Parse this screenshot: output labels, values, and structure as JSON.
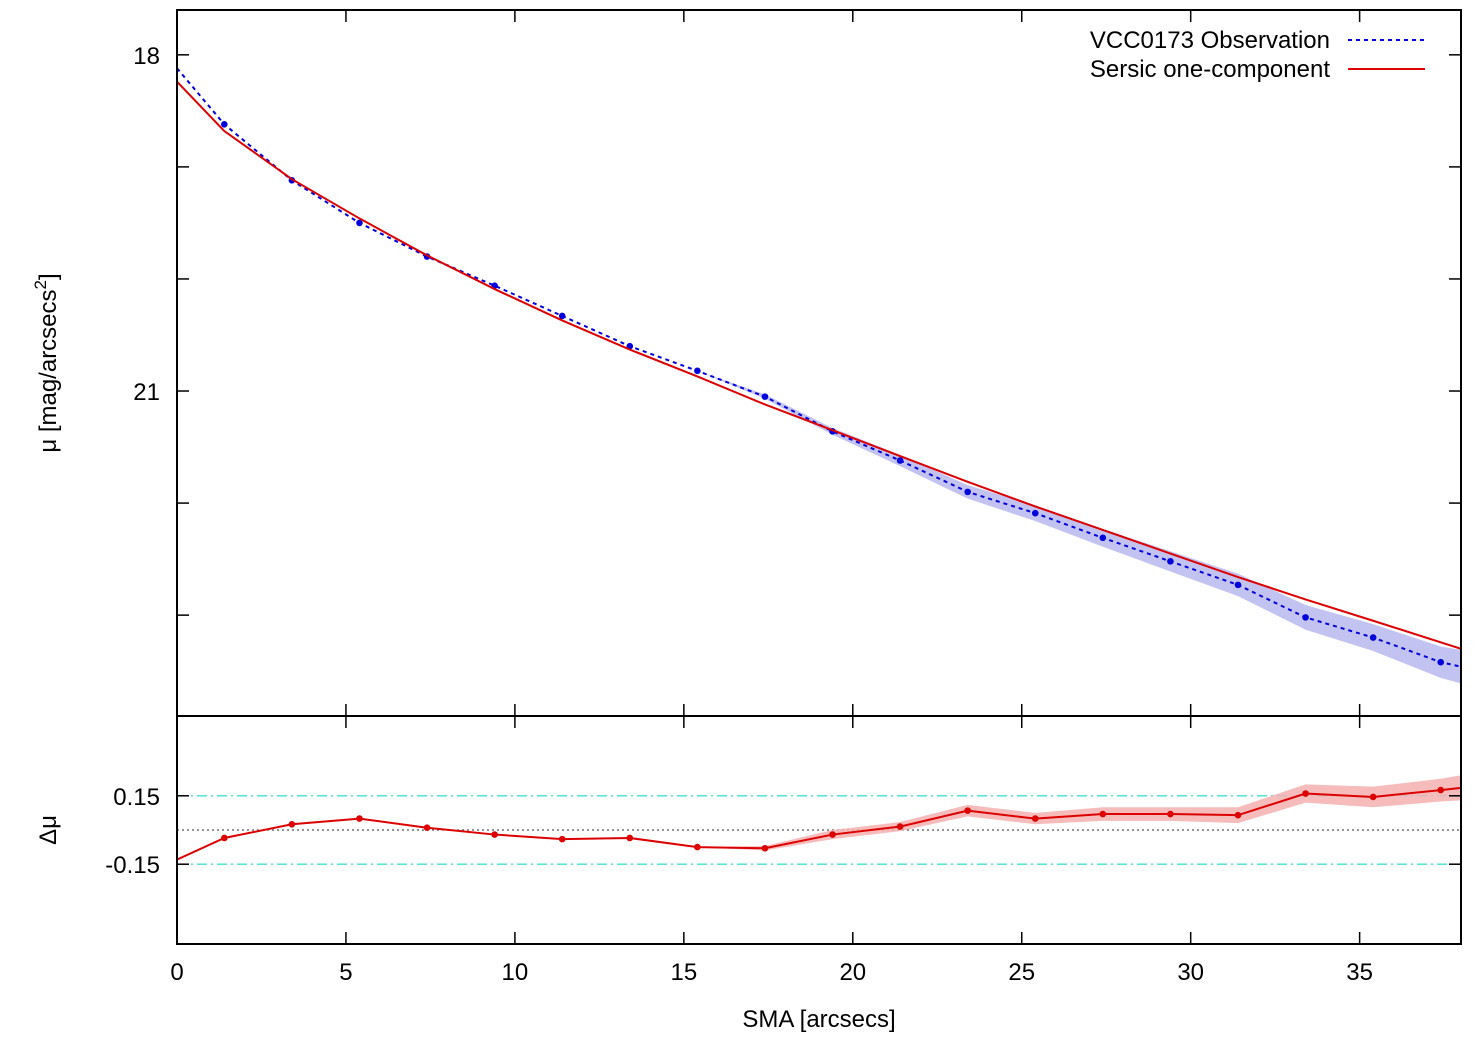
{
  "chart_data": [
    {
      "type": "line",
      "panel": "top",
      "ylabel": "μ [mag/arcsecs",
      "ylabel_sup": "2",
      "ylabel_close": "]",
      "xlim": [
        0,
        38
      ],
      "ylim": [
        23.9,
        17.6
      ],
      "y_inverted": true,
      "yticks_major": [
        18,
        21
      ],
      "yticks_labels": [
        "18",
        "21"
      ],
      "yticks_minor": [
        19,
        20,
        22,
        23
      ],
      "legend_placement": "top-right",
      "series": [
        {
          "name": "VCC0173 Observation",
          "style": "dotted",
          "color": "#0000dd",
          "band_color": "#b8b8f0",
          "x": [
            0,
            1.4,
            3.4,
            5.4,
            7.4,
            9.4,
            11.4,
            13.4,
            15.4,
            17.4,
            19.4,
            21.4,
            23.4,
            25.4,
            27.4,
            29.4,
            31.4,
            33.4,
            35.4,
            37.4,
            38
          ],
          "y": [
            18.12,
            18.62,
            19.12,
            19.5,
            19.8,
            20.06,
            20.33,
            20.6,
            20.82,
            21.05,
            21.36,
            21.62,
            21.9,
            22.09,
            22.31,
            22.52,
            22.73,
            23.02,
            23.2,
            23.42,
            23.46
          ],
          "band": [
            0,
            0,
            0,
            0,
            0,
            0,
            0,
            0,
            0,
            0.02,
            0.03,
            0.05,
            0.06,
            0.07,
            0.08,
            0.09,
            0.1,
            0.11,
            0.12,
            0.14,
            0.15
          ]
        },
        {
          "name": "Sersic one-component",
          "style": "solid",
          "color": "#dd0000",
          "x": [
            0,
            1.4,
            3.4,
            5.4,
            7.4,
            9.4,
            11.4,
            13.4,
            15.4,
            17.4,
            19.4,
            21.4,
            23.4,
            25.4,
            27.4,
            29.4,
            31.4,
            33.4,
            35.4,
            38
          ],
          "y": [
            18.24,
            18.68,
            19.11,
            19.46,
            19.79,
            20.09,
            20.37,
            20.63,
            20.87,
            21.12,
            21.35,
            21.58,
            21.81,
            22.03,
            22.24,
            22.45,
            22.66,
            22.86,
            23.05,
            23.3
          ]
        }
      ]
    },
    {
      "type": "line",
      "panel": "bottom",
      "xlabel": "SMA [arcsecs]",
      "ylabel": "Δμ",
      "xlim": [
        0,
        38
      ],
      "ylim": [
        -0.5,
        0.5
      ],
      "xticks": [
        0,
        5,
        10,
        15,
        20,
        25,
        30,
        35
      ],
      "xtick_labels": [
        "0",
        "5",
        "10",
        "15",
        "20",
        "25",
        "30",
        "35"
      ],
      "yticks": [
        0.15,
        -0.15
      ],
      "ytick_labels": [
        "0.15",
        "-0.15"
      ],
      "reference_lines": [
        {
          "y": 0.15,
          "style": "dash-dot",
          "color": "#40e0d0"
        },
        {
          "y": -0.15,
          "style": "dash-dot",
          "color": "#40e0d0"
        },
        {
          "y": 0,
          "style": "dotted",
          "color": "#555555"
        }
      ],
      "series": [
        {
          "style": "solid-points",
          "color": "#dd0000",
          "band_color": "#f4b0b0",
          "x": [
            0,
            1.4,
            3.4,
            5.4,
            7.4,
            9.4,
            11.4,
            13.4,
            15.4,
            17.4,
            19.4,
            21.4,
            23.4,
            25.4,
            27.4,
            29.4,
            31.4,
            33.4,
            35.4,
            37.4,
            38
          ],
          "y": [
            -0.13,
            -0.035,
            0.025,
            0.05,
            0.01,
            -0.02,
            -0.04,
            -0.035,
            -0.075,
            -0.08,
            -0.02,
            0.015,
            0.085,
            0.05,
            0.07,
            0.07,
            0.065,
            0.16,
            0.145,
            0.175,
            0.185
          ],
          "band": [
            0,
            0,
            0,
            0,
            0,
            0,
            0,
            0,
            0,
            0.01,
            0.02,
            0.02,
            0.025,
            0.025,
            0.03,
            0.03,
            0.035,
            0.04,
            0.045,
            0.05,
            0.055
          ]
        }
      ]
    }
  ]
}
